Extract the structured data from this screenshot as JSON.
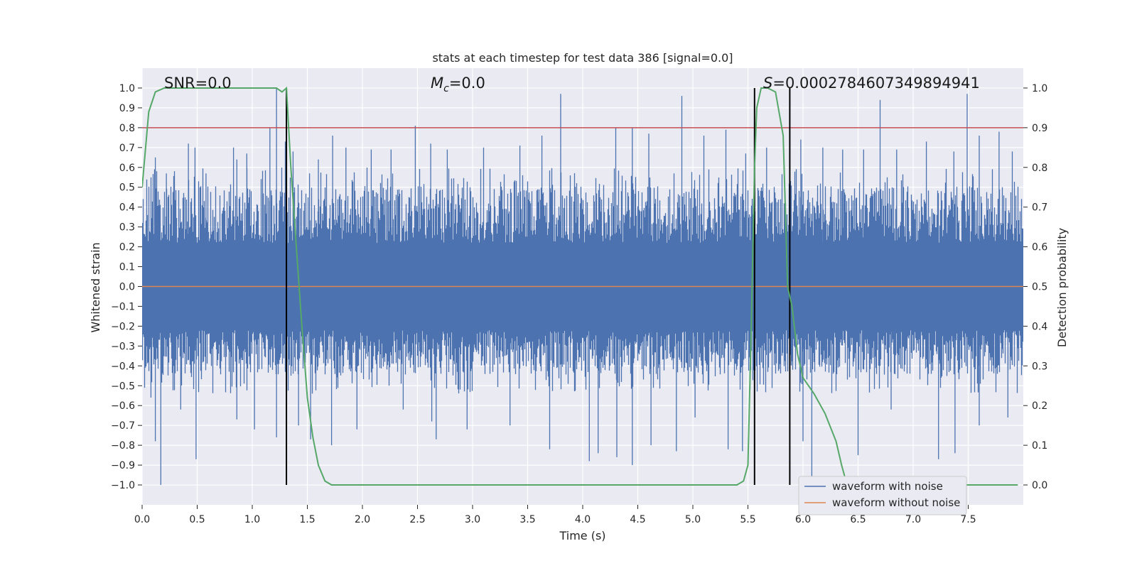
{
  "chart_data": {
    "type": "line",
    "title": "stats at each timestep for test data 386 [signal=0.0]",
    "xlabel": "Time (s)",
    "ylabel": "Whitened strain",
    "y2label": "Detection probability",
    "xlim": [
      0.0,
      8.0
    ],
    "ylim": [
      -1.1,
      1.1
    ],
    "y2lim": [
      -0.05,
      1.05
    ],
    "xticks": [
      "0.0",
      "0.5",
      "1.0",
      "1.5",
      "2.0",
      "2.5",
      "3.0",
      "3.5",
      "4.0",
      "4.5",
      "5.0",
      "5.5",
      "6.0",
      "6.5",
      "7.0",
      "7.5"
    ],
    "yticks": [
      "1.0",
      "0.9",
      "0.8",
      "0.7",
      "0.6",
      "0.5",
      "0.4",
      "0.3",
      "0.2",
      "0.1",
      "0.0",
      "−0.1",
      "−0.2",
      "−0.3",
      "−0.4",
      "−0.5",
      "−0.6",
      "−0.7",
      "−0.8",
      "−0.9",
      "−1.0"
    ],
    "y2ticks": [
      "1.0",
      "0.9",
      "0.8",
      "0.7",
      "0.6",
      "0.5",
      "0.4",
      "0.3",
      "0.2",
      "0.1",
      "0.0"
    ],
    "annotations": {
      "snr": "SNR=0.0",
      "mc_symbol": "M",
      "mc_sub": "c",
      "mc_value": "=0.0",
      "s_symbol": "S",
      "s_value": "=0.0002784607349894941"
    },
    "threshold": {
      "y2": 0.9,
      "color": "#c44e52"
    },
    "vertical_lines_x": [
      1.31,
      5.56,
      5.88
    ],
    "series": [
      {
        "name": "waveform with noise",
        "color": "#4c72b0",
        "noise_band": [
          -0.4,
          0.6
        ],
        "upper_spikes": [
          [
            0.12,
            0.65
          ],
          [
            0.22,
            0.57
          ],
          [
            0.42,
            0.72
          ],
          [
            0.48,
            0.7
          ],
          [
            0.58,
            0.57
          ],
          [
            0.83,
            0.7
          ],
          [
            0.86,
            0.64
          ],
          [
            0.95,
            0.67
          ],
          [
            1.16,
            0.8
          ],
          [
            1.22,
            1.0
          ],
          [
            1.3,
            0.73
          ],
          [
            1.37,
            0.68
          ],
          [
            1.52,
            0.57
          ],
          [
            1.6,
            0.64
          ],
          [
            1.73,
            0.76
          ],
          [
            1.85,
            0.7
          ],
          [
            2.08,
            0.69
          ],
          [
            2.26,
            0.69
          ],
          [
            2.48,
            0.81
          ],
          [
            2.62,
            0.72
          ],
          [
            2.77,
            0.69
          ],
          [
            3.1,
            0.7
          ],
          [
            3.43,
            0.71
          ],
          [
            3.63,
            0.76
          ],
          [
            3.8,
            0.97
          ],
          [
            4.3,
            0.8
          ],
          [
            4.45,
            0.8
          ],
          [
            4.6,
            0.77
          ],
          [
            4.9,
            0.96
          ],
          [
            5.1,
            0.76
          ],
          [
            5.3,
            0.79
          ],
          [
            5.48,
            0.67
          ],
          [
            5.67,
            0.7
          ],
          [
            5.98,
            0.74
          ],
          [
            6.18,
            0.7
          ],
          [
            6.36,
            0.69
          ],
          [
            6.55,
            0.69
          ],
          [
            6.7,
            0.94
          ],
          [
            6.85,
            0.69
          ],
          [
            7.12,
            0.73
          ],
          [
            7.37,
            0.68
          ],
          [
            7.49,
            0.97
          ],
          [
            7.6,
            0.76
          ],
          [
            7.78,
            0.78
          ],
          [
            7.9,
            0.68
          ]
        ],
        "lower_spikes": [
          [
            0.08,
            -0.56
          ],
          [
            0.12,
            -0.78
          ],
          [
            0.17,
            -1.0
          ],
          [
            0.35,
            -0.62
          ],
          [
            0.49,
            -0.87
          ],
          [
            0.86,
            -0.67
          ],
          [
            1.02,
            -0.72
          ],
          [
            1.22,
            -0.76
          ],
          [
            1.42,
            -0.7
          ],
          [
            1.53,
            -0.77
          ],
          [
            1.72,
            -0.8
          ],
          [
            1.95,
            -0.72
          ],
          [
            2.37,
            -0.62
          ],
          [
            2.63,
            -0.68
          ],
          [
            2.67,
            -0.77
          ],
          [
            2.95,
            -0.72
          ],
          [
            3.34,
            -0.7
          ],
          [
            3.7,
            -0.82
          ],
          [
            4.06,
            -0.88
          ],
          [
            4.14,
            -0.84
          ],
          [
            4.31,
            -0.86
          ],
          [
            4.45,
            -0.9
          ],
          [
            4.62,
            -0.8
          ],
          [
            4.85,
            -0.83
          ],
          [
            5.02,
            -0.66
          ],
          [
            5.32,
            -0.82
          ],
          [
            5.45,
            -0.83
          ],
          [
            6.0,
            -0.78
          ],
          [
            6.08,
            -0.96
          ],
          [
            6.5,
            -0.85
          ],
          [
            6.8,
            -0.62
          ],
          [
            7.23,
            -0.87
          ],
          [
            7.38,
            -0.84
          ],
          [
            7.6,
            -0.7
          ],
          [
            7.86,
            -0.66
          ]
        ]
      },
      {
        "name": "waveform without noise",
        "color": "#dd8452",
        "values_note": "flat at 0"
      },
      {
        "name": "detection probability",
        "color": "#55a868",
        "axis": "y2",
        "x": [
          0.0,
          0.06,
          0.12,
          0.2,
          0.4,
          0.8,
          1.0,
          1.22,
          1.27,
          1.31,
          1.35,
          1.4,
          1.45,
          1.5,
          1.55,
          1.6,
          1.66,
          1.72,
          2.0,
          3.0,
          4.0,
          5.0,
          5.4,
          5.46,
          5.5,
          5.53,
          5.56,
          5.58,
          5.62,
          5.68,
          5.75,
          5.82,
          5.86,
          5.9,
          5.95,
          6.0,
          6.05,
          6.1,
          6.2,
          6.3,
          6.35,
          6.4,
          6.45,
          6.55,
          7.0,
          7.5,
          7.95
        ],
        "values": [
          0.75,
          0.94,
          0.99,
          1.0,
          1.0,
          1.0,
          1.0,
          1.0,
          0.99,
          1.0,
          0.8,
          0.6,
          0.4,
          0.22,
          0.12,
          0.05,
          0.01,
          0.0,
          0.0,
          0.0,
          0.0,
          0.0,
          0.0,
          0.01,
          0.05,
          0.4,
          0.8,
          0.95,
          1.0,
          1.0,
          0.99,
          0.88,
          0.5,
          0.45,
          0.33,
          0.27,
          0.25,
          0.23,
          0.18,
          0.11,
          0.05,
          0.0,
          0.0,
          0.0,
          0.0,
          0.0,
          0.0
        ]
      }
    ],
    "legend": {
      "position": "lower-right",
      "entries": [
        {
          "label": "waveform with noise",
          "color": "#4c72b0"
        },
        {
          "label": "waveform without noise",
          "color": "#dd8452"
        }
      ]
    }
  }
}
